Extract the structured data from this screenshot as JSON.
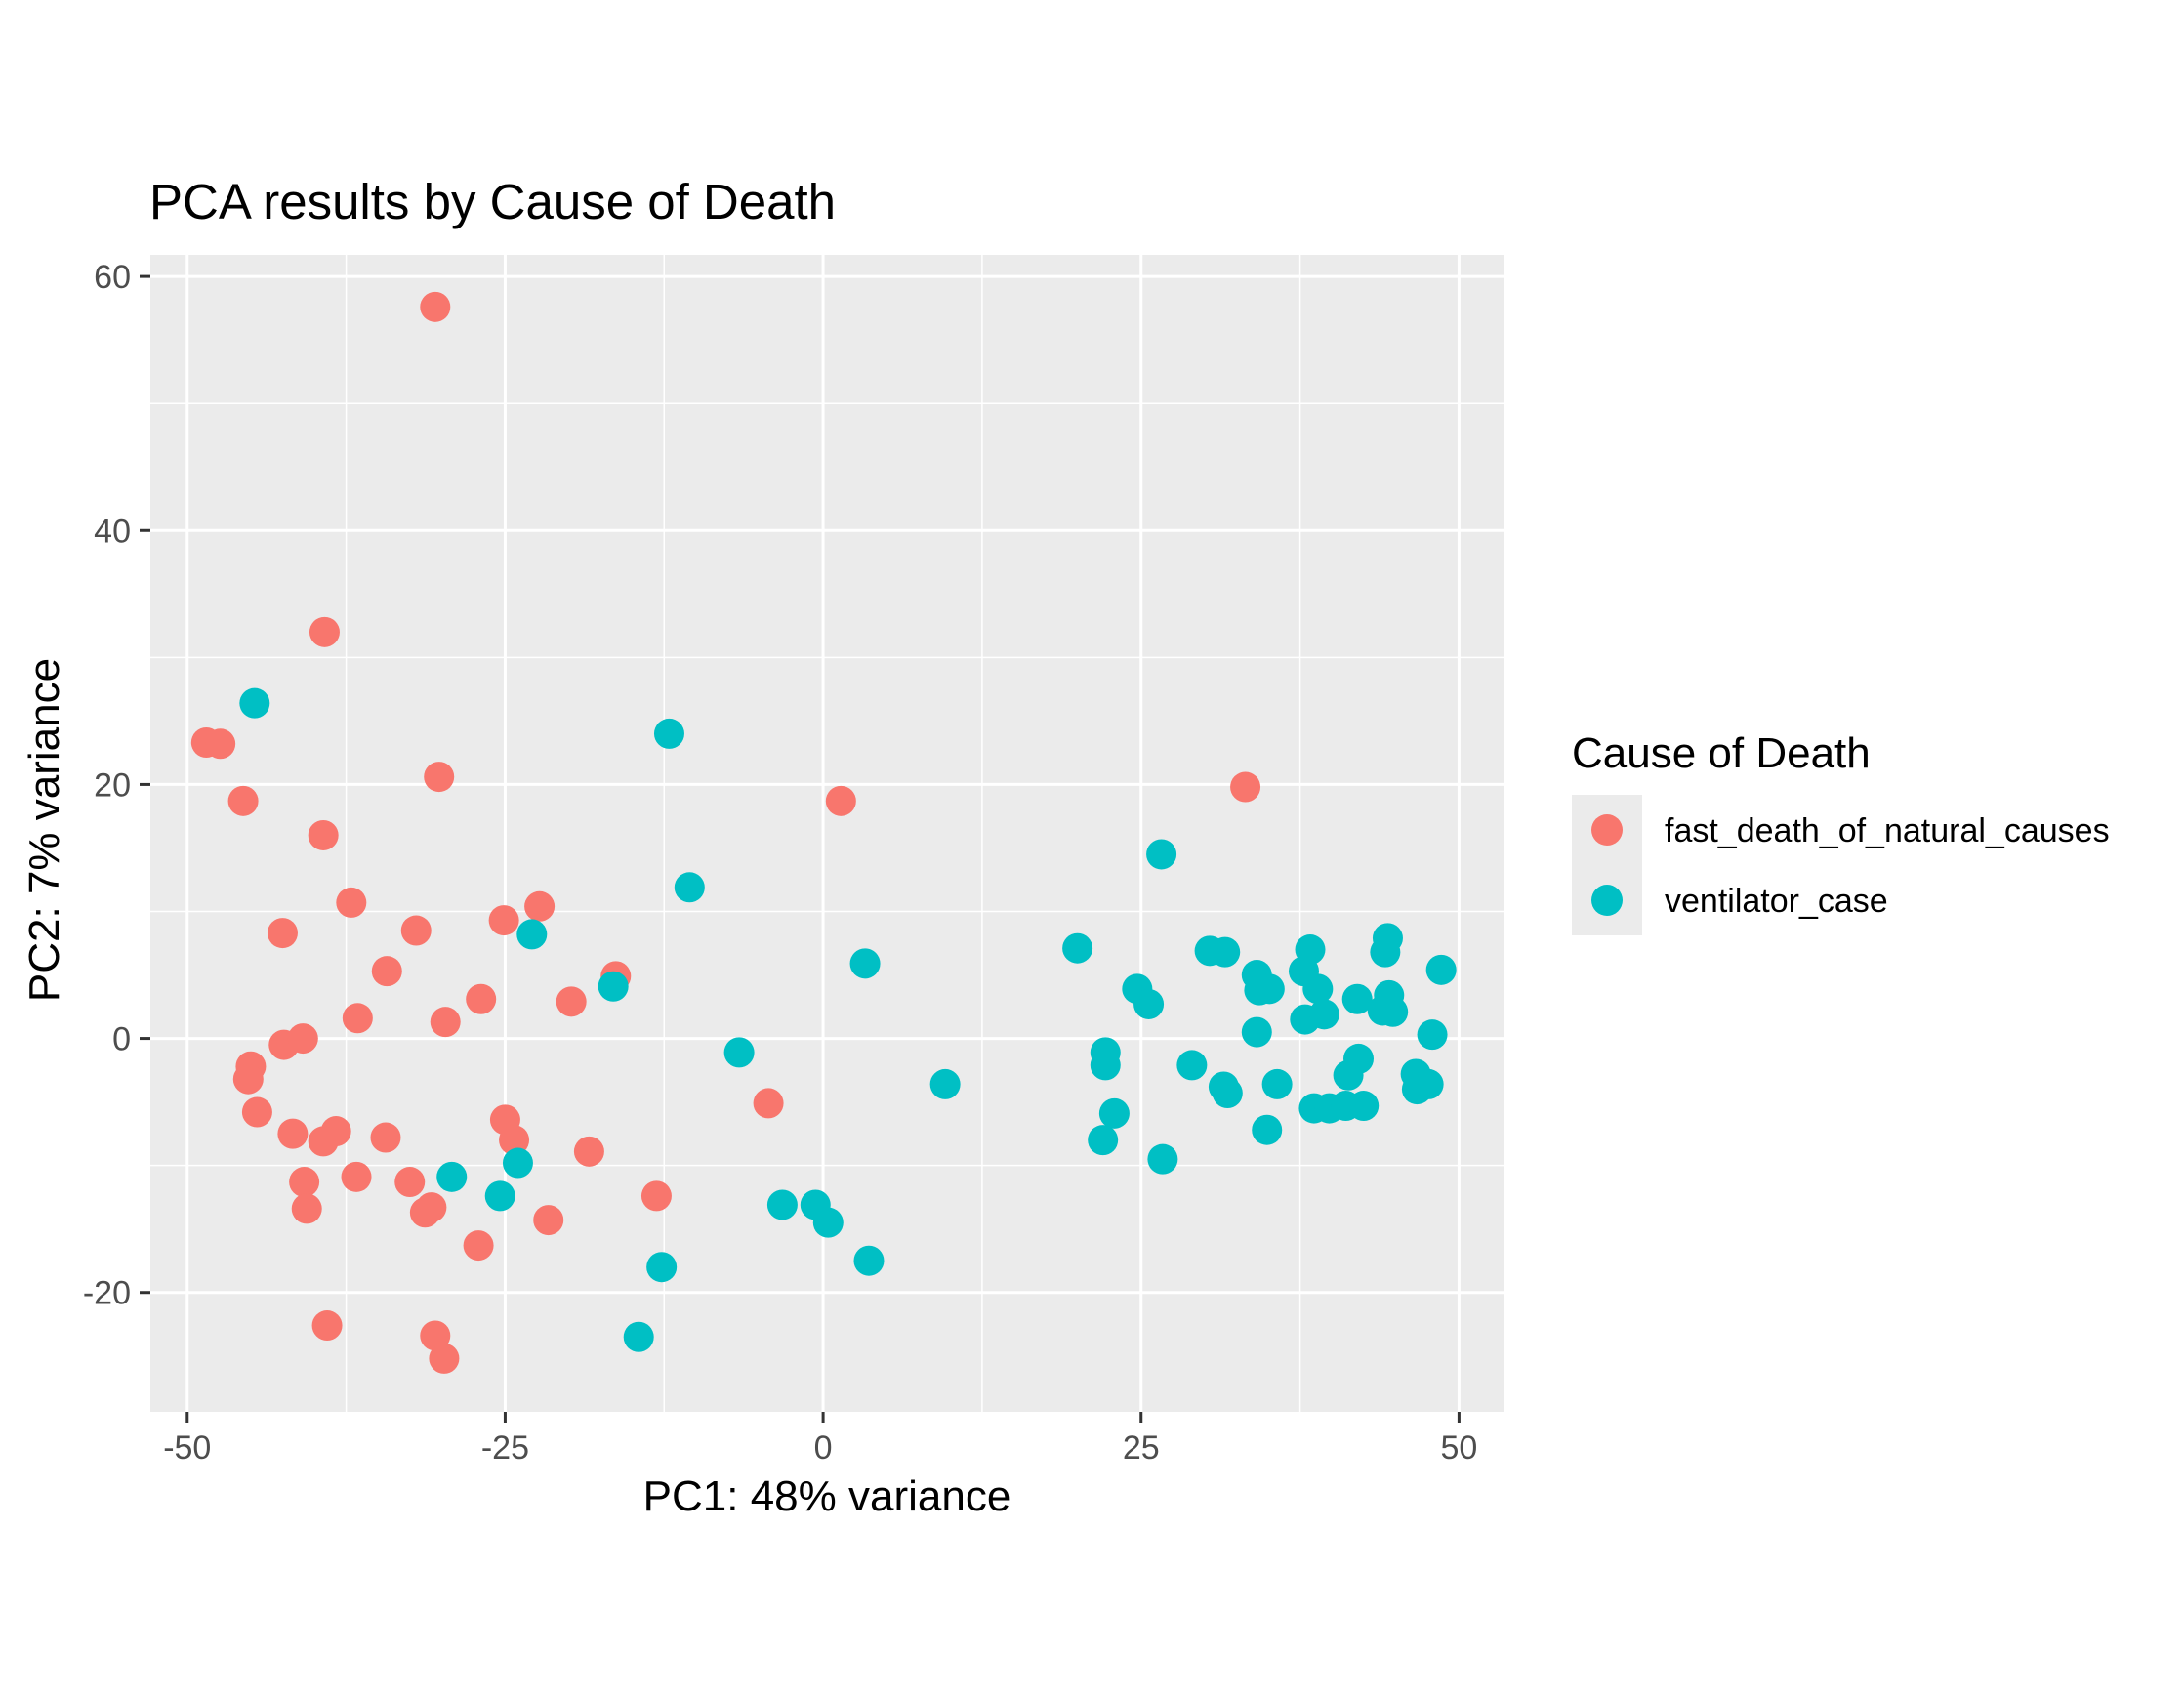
{
  "chart_data": {
    "type": "scatter",
    "title": "PCA results by Cause of Death",
    "xlabel": "PC1: 48% variance",
    "ylabel": "PC2: 7% variance",
    "xlim": [
      -52.9,
      53.5
    ],
    "ylim": [
      -29.4,
      61.7
    ],
    "x_ticks": [
      -50,
      -25,
      0,
      25,
      50
    ],
    "x_tick_labels": [
      "-50",
      "-25",
      "0",
      "25",
      "50"
    ],
    "y_ticks": [
      -20,
      0,
      20,
      40,
      60
    ],
    "y_tick_labels": [
      "-20",
      "0",
      "20",
      "40",
      "60"
    ],
    "grid": true,
    "legend": {
      "title": "Cause of Death",
      "position": "right"
    },
    "series": [
      {
        "name": "fast_death_of_natural_causes",
        "color": "#F8766D",
        "points": [
          [
            -30.5,
            57.6
          ],
          [
            -39.2,
            32.0
          ],
          [
            -48.5,
            23.3
          ],
          [
            -47.4,
            23.2
          ],
          [
            -45.6,
            18.7
          ],
          [
            -30.2,
            20.6
          ],
          [
            -39.3,
            16.0
          ],
          [
            -37.1,
            10.7
          ],
          [
            -42.5,
            8.3
          ],
          [
            -32.0,
            8.5
          ],
          [
            -25.1,
            9.3
          ],
          [
            -22.3,
            10.4
          ],
          [
            -34.3,
            5.3
          ],
          [
            -16.3,
            4.9
          ],
          [
            -26.9,
            3.1
          ],
          [
            -36.6,
            1.6
          ],
          [
            -29.7,
            1.3
          ],
          [
            -19.8,
            2.9
          ],
          [
            -42.4,
            -0.5
          ],
          [
            -40.9,
            0.0
          ],
          [
            -45.0,
            -2.2
          ],
          [
            -45.2,
            -3.2
          ],
          [
            -44.5,
            -5.8
          ],
          [
            -41.7,
            -7.5
          ],
          [
            -38.3,
            -7.3
          ],
          [
            -39.3,
            -8.1
          ],
          [
            -34.4,
            -7.8
          ],
          [
            -25.0,
            -6.4
          ],
          [
            -24.3,
            -8.0
          ],
          [
            -18.4,
            -8.9
          ],
          [
            -40.8,
            -11.3
          ],
          [
            -36.7,
            -10.9
          ],
          [
            -32.5,
            -11.3
          ],
          [
            -40.6,
            -13.4
          ],
          [
            -31.3,
            -13.7
          ],
          [
            -30.8,
            -13.3
          ],
          [
            -13.1,
            -12.4
          ],
          [
            -21.6,
            -14.3
          ],
          [
            -27.1,
            -16.3
          ],
          [
            -39.0,
            -22.6
          ],
          [
            -30.5,
            -23.4
          ],
          [
            -29.8,
            -25.2
          ],
          [
            -4.3,
            -5.1
          ],
          [
            1.4,
            18.7
          ],
          [
            33.2,
            19.8
          ]
        ]
      },
      {
        "name": "ventilator_case",
        "color": "#00BFC4",
        "points": [
          [
            -44.7,
            26.4
          ],
          [
            -12.1,
            24.0
          ],
          [
            -10.5,
            11.9
          ],
          [
            -22.9,
            8.2
          ],
          [
            -16.5,
            4.1
          ],
          [
            3.3,
            5.9
          ],
          [
            -6.6,
            -1.1
          ],
          [
            9.6,
            -3.6
          ],
          [
            -29.2,
            -10.9
          ],
          [
            -24.0,
            -9.8
          ],
          [
            -25.4,
            -12.4
          ],
          [
            -3.2,
            -13.1
          ],
          [
            -0.6,
            -13.1
          ],
          [
            0.4,
            -14.5
          ],
          [
            3.6,
            -17.5
          ],
          [
            -12.7,
            -18.0
          ],
          [
            -14.5,
            -23.5
          ],
          [
            26.6,
            14.5
          ],
          [
            20.0,
            7.1
          ],
          [
            24.7,
            3.9
          ],
          [
            25.6,
            2.7
          ],
          [
            22.2,
            -1.1
          ],
          [
            22.2,
            -2.1
          ],
          [
            22.9,
            -5.9
          ],
          [
            22.0,
            -8.0
          ],
          [
            26.7,
            -9.5
          ],
          [
            29.0,
            -2.1
          ],
          [
            30.4,
            6.9
          ],
          [
            31.6,
            6.8
          ],
          [
            31.5,
            -3.8
          ],
          [
            31.8,
            -4.3
          ],
          [
            34.1,
            5.0
          ],
          [
            34.3,
            3.8
          ],
          [
            35.1,
            3.9
          ],
          [
            34.1,
            0.5
          ],
          [
            35.7,
            -3.6
          ],
          [
            34.9,
            -7.2
          ],
          [
            37.8,
            5.3
          ],
          [
            38.3,
            7.0
          ],
          [
            38.9,
            3.9
          ],
          [
            37.9,
            1.5
          ],
          [
            39.4,
            1.9
          ],
          [
            38.6,
            -5.5
          ],
          [
            39.8,
            -5.5
          ],
          [
            41.1,
            -5.3
          ],
          [
            41.3,
            -2.9
          ],
          [
            42.1,
            -1.6
          ],
          [
            42.0,
            3.1
          ],
          [
            42.5,
            -5.3
          ],
          [
            44.2,
            6.8
          ],
          [
            44.4,
            7.9
          ],
          [
            44.5,
            3.4
          ],
          [
            44.0,
            2.2
          ],
          [
            44.8,
            2.1
          ],
          [
            46.6,
            -2.8
          ],
          [
            46.7,
            -4.0
          ],
          [
            47.6,
            -3.6
          ],
          [
            47.9,
            0.3
          ],
          [
            48.6,
            5.4
          ]
        ]
      }
    ]
  }
}
